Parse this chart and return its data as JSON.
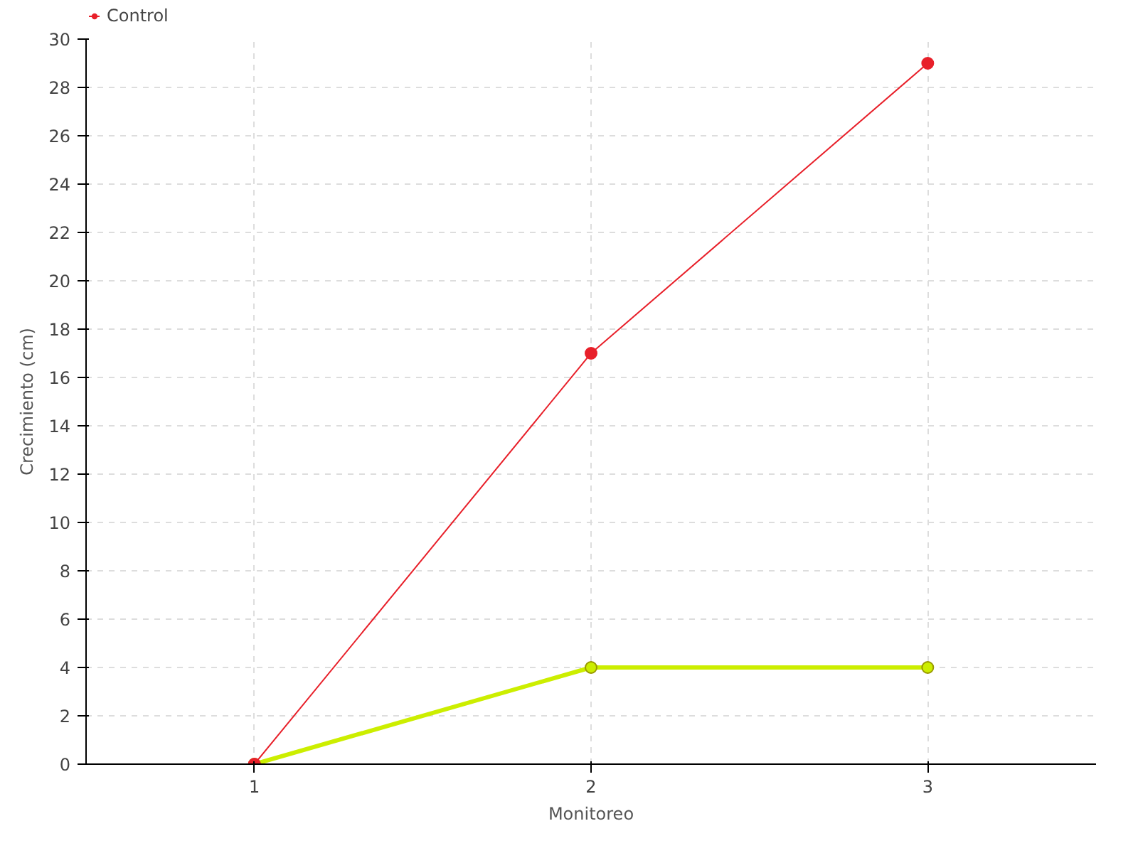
{
  "chart_data": {
    "type": "line",
    "xlabel": "Monitoreo",
    "ylabel": "Crecimiento (cm)",
    "x": [
      1,
      2,
      3
    ],
    "series": [
      {
        "color": "#ccee00",
        "values": [
          0,
          4,
          4
        ]
      },
      {
        "name": "Control",
        "color": "#e8202a",
        "values": [
          0,
          17,
          29
        ]
      }
    ],
    "xlim": [
      0.5,
      3.5
    ],
    "xticks": [
      1,
      2,
      3
    ],
    "ylim": [
      0,
      30
    ],
    "yticks": [
      0,
      2,
      4,
      6,
      8,
      10,
      12,
      14,
      16,
      18,
      20,
      22,
      24,
      26,
      28,
      30
    ],
    "grid": true,
    "legend": "top left",
    "marker": "circle",
    "line_style": "solid"
  }
}
